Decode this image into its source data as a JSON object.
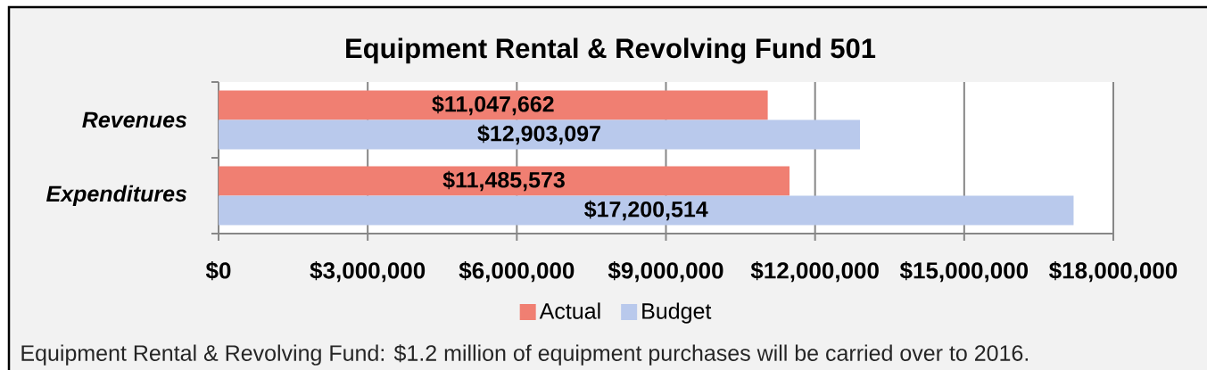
{
  "chart_data": {
    "type": "bar",
    "orientation": "horizontal",
    "title": "Equipment Rental & Revolving Fund 501",
    "categories": [
      "Revenues",
      "Expenditures"
    ],
    "series": [
      {
        "name": "Actual",
        "color": "#f07f72",
        "values": [
          11047662,
          11485573
        ],
        "value_labels": [
          "$11,047,662",
          "$11,485,573"
        ]
      },
      {
        "name": "Budget",
        "color": "#b9c9ec",
        "values": [
          12903097,
          17200514
        ],
        "value_labels": [
          "$12,903,097",
          "$17,200,514"
        ]
      }
    ],
    "xlim": [
      0,
      18000000
    ],
    "xticks": [
      {
        "value": 0,
        "label": "$0"
      },
      {
        "value": 3000000,
        "label": "$3,000,000"
      },
      {
        "value": 6000000,
        "label": "$6,000,000"
      },
      {
        "value": 9000000,
        "label": "$9,000,000"
      },
      {
        "value": 12000000,
        "label": "$12,000,000"
      },
      {
        "value": 15000000,
        "label": "$15,000,000"
      },
      {
        "value": 18000000,
        "label": "$18,000,000"
      }
    ],
    "grid": "x",
    "legend": "bottom",
    "annotations": [
      "Equipment Rental & Revolving Fund: $1.2 million of equipment purchases will be carried over to 2016."
    ]
  }
}
